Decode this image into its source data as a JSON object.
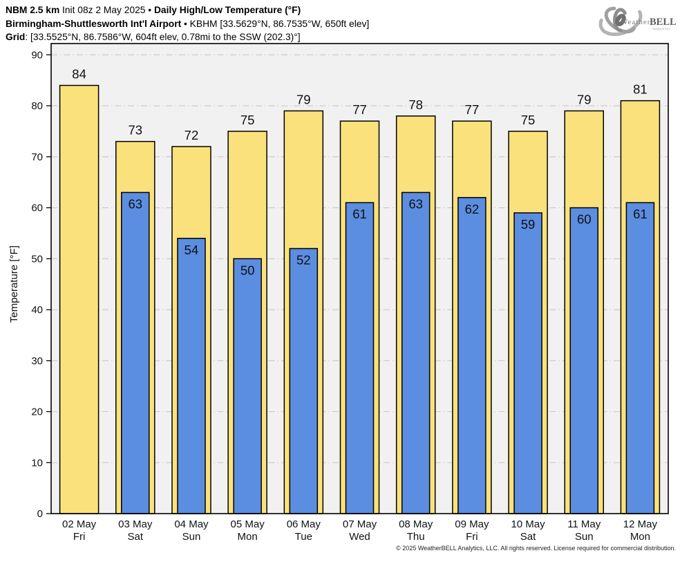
{
  "header": {
    "line1": [
      "NBM 2.5 km",
      " Init 08z 2 May 2025 • ",
      "Daily High/Low Temperature (°F)"
    ],
    "line2": [
      "Birmingham-Shuttlesworth Int'l Airport",
      " • KBHM [33.5629°N, 86.7535°W, 650ft elev]"
    ],
    "line3": [
      "Grid",
      ": [33.5525°N, 86.7586°W, 604ft elev, 0.78mi to the SSW (202.3)°]"
    ]
  },
  "logo": {
    "weather": "Weather",
    "bell": "BELL",
    "sub": "Analytics LLC"
  },
  "chart_data": {
    "type": "bar",
    "title": "Daily High/Low Temperature (°F)",
    "model": "NBM 2.5 km",
    "init": "Init 08z 2 May 2025",
    "station": "KBHM Birmingham-Shuttlesworth Int'l Airport",
    "categories": [
      {
        "date": "02 May",
        "day": "Fri"
      },
      {
        "date": "03 May",
        "day": "Sat"
      },
      {
        "date": "04 May",
        "day": "Sun"
      },
      {
        "date": "05 May",
        "day": "Mon"
      },
      {
        "date": "06 May",
        "day": "Tue"
      },
      {
        "date": "07 May",
        "day": "Wed"
      },
      {
        "date": "08 May",
        "day": "Thu"
      },
      {
        "date": "09 May",
        "day": "Fri"
      },
      {
        "date": "10 May",
        "day": "Sat"
      },
      {
        "date": "11 May",
        "day": "Sun"
      },
      {
        "date": "12 May",
        "day": "Mon"
      }
    ],
    "series": [
      {
        "name": "High",
        "color": "#FBE17C",
        "values": [
          84,
          73,
          72,
          75,
          79,
          77,
          78,
          77,
          75,
          79,
          81
        ]
      },
      {
        "name": "Low",
        "color": "#5B8DE0",
        "values": [
          null,
          63,
          54,
          50,
          52,
          61,
          63,
          62,
          59,
          60,
          61
        ]
      }
    ],
    "ylabel": "Temperature [°F]",
    "ylim": [
      0,
      92
    ],
    "yticks": [
      0,
      10,
      20,
      30,
      40,
      50,
      60,
      70,
      80,
      90
    ],
    "grid": "horizontal dash-dot",
    "legend": "none",
    "plot_bg": "#F1F1F1",
    "grid_color": "#C9C9C9",
    "bar_outline": "#000000",
    "text_color": "#111111"
  },
  "footer": {
    "copyright": "© 2025 WeatherBELL Analytics, LLC. All rights reserved. License required for commercial distribution."
  }
}
